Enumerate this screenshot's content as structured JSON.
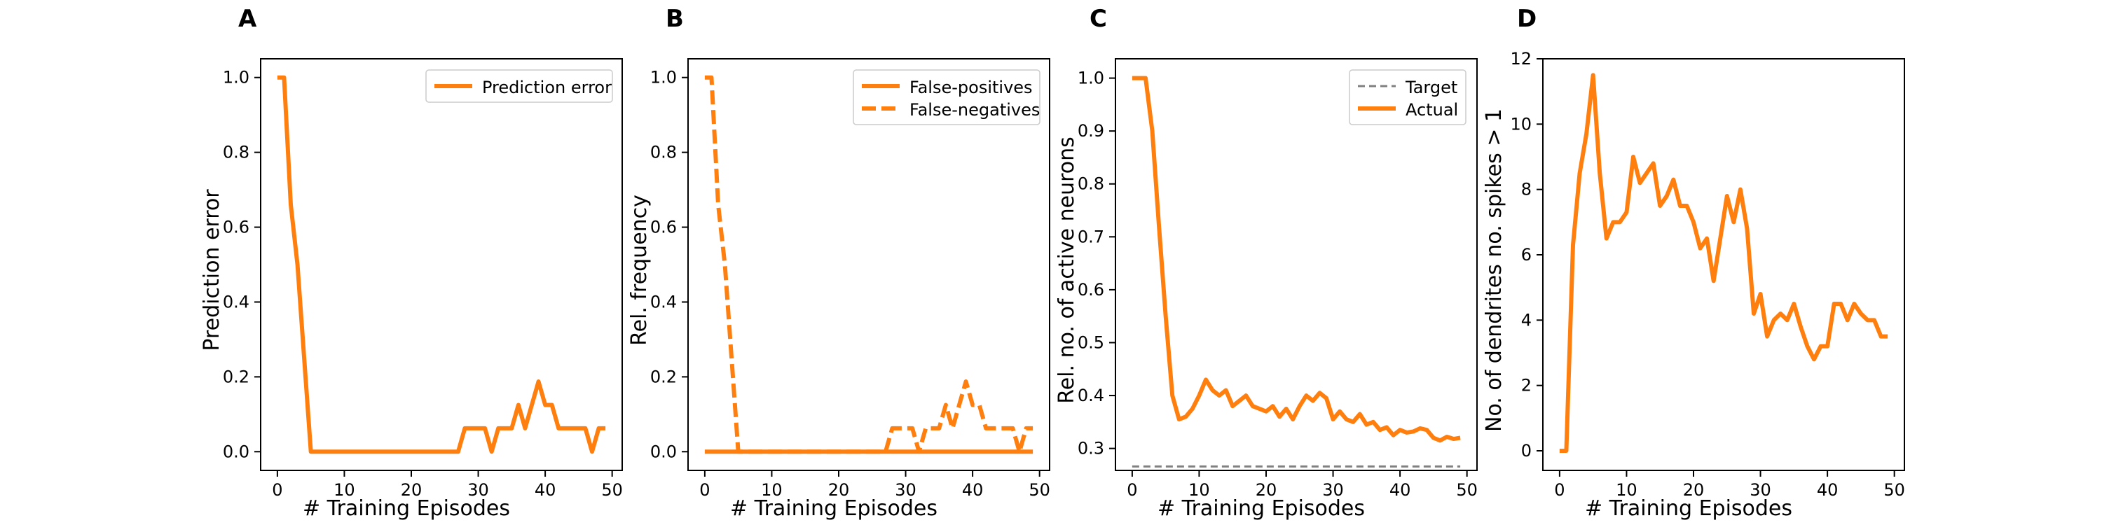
{
  "colors": {
    "series": "#ff7f0e",
    "target": "#808080",
    "axis": "#000000",
    "background": "#ffffff"
  },
  "chart_data": [
    {
      "panel_label": "A",
      "type": "line",
      "xlabel": "# Training Episodes",
      "ylabel": "Prediction error",
      "xlim": [
        -2.5,
        51.5
      ],
      "ylim": [
        -0.05,
        1.05
      ],
      "xticks": [
        0,
        10,
        20,
        30,
        40,
        50
      ],
      "yticks": [
        0.0,
        0.2,
        0.4,
        0.6,
        0.8,
        1.0
      ],
      "ytick_labels": [
        "0.0",
        "0.2",
        "0.4",
        "0.6",
        "0.8",
        "1.0"
      ],
      "legend_position": "upper-right",
      "series": [
        {
          "name": "Prediction error",
          "style": "solid",
          "x": [
            0,
            1,
            2,
            3,
            4,
            5,
            6,
            7,
            8,
            9,
            10,
            11,
            12,
            13,
            14,
            15,
            16,
            17,
            18,
            19,
            20,
            21,
            22,
            23,
            24,
            25,
            26,
            27,
            28,
            29,
            30,
            31,
            32,
            33,
            34,
            35,
            36,
            37,
            38,
            39,
            40,
            41,
            42,
            43,
            44,
            45,
            46,
            47,
            48,
            49
          ],
          "y": [
            1.0,
            1.0,
            0.66,
            0.5,
            0.25,
            0,
            0,
            0,
            0,
            0,
            0,
            0,
            0,
            0,
            0,
            0,
            0,
            0,
            0,
            0,
            0,
            0,
            0,
            0,
            0,
            0,
            0,
            0,
            0.0625,
            0.0625,
            0.0625,
            0.0625,
            0,
            0.0625,
            0.0625,
            0.0625,
            0.125,
            0.0625,
            0.125,
            0.1875,
            0.125,
            0.125,
            0.0625,
            0.0625,
            0.0625,
            0.0625,
            0.0625,
            0,
            0.0625,
            0.0625
          ]
        }
      ]
    },
    {
      "panel_label": "B",
      "type": "line",
      "xlabel": "# Training Episodes",
      "ylabel": "Rel. frequency",
      "xlim": [
        -2.5,
        51.5
      ],
      "ylim": [
        -0.05,
        1.05
      ],
      "xticks": [
        0,
        10,
        20,
        30,
        40,
        50
      ],
      "yticks": [
        0.0,
        0.2,
        0.4,
        0.6,
        0.8,
        1.0
      ],
      "ytick_labels": [
        "0.0",
        "0.2",
        "0.4",
        "0.6",
        "0.8",
        "1.0"
      ],
      "legend_position": "upper-right",
      "series": [
        {
          "name": "False-positives",
          "style": "solid",
          "x": [
            0,
            1,
            2,
            3,
            4,
            5,
            6,
            7,
            8,
            9,
            10,
            11,
            12,
            13,
            14,
            15,
            16,
            17,
            18,
            19,
            20,
            21,
            22,
            23,
            24,
            25,
            26,
            27,
            28,
            29,
            30,
            31,
            32,
            33,
            34,
            35,
            36,
            37,
            38,
            39,
            40,
            41,
            42,
            43,
            44,
            45,
            46,
            47,
            48,
            49
          ],
          "y": [
            0,
            0,
            0,
            0,
            0,
            0,
            0,
            0,
            0,
            0,
            0,
            0,
            0,
            0,
            0,
            0,
            0,
            0,
            0,
            0,
            0,
            0,
            0,
            0,
            0,
            0,
            0,
            0,
            0,
            0,
            0,
            0,
            0,
            0,
            0,
            0,
            0,
            0,
            0,
            0,
            0,
            0,
            0,
            0,
            0,
            0,
            0,
            0,
            0,
            0
          ]
        },
        {
          "name": "False-negatives",
          "style": "dashed",
          "x": [
            0,
            1,
            2,
            3,
            4,
            5,
            6,
            7,
            8,
            9,
            10,
            11,
            12,
            13,
            14,
            15,
            16,
            17,
            18,
            19,
            20,
            21,
            22,
            23,
            24,
            25,
            26,
            27,
            28,
            29,
            30,
            31,
            32,
            33,
            34,
            35,
            36,
            37,
            38,
            39,
            40,
            41,
            42,
            43,
            44,
            45,
            46,
            47,
            48,
            49
          ],
          "y": [
            1.0,
            1.0,
            0.66,
            0.5,
            0.25,
            0,
            0,
            0,
            0,
            0,
            0,
            0,
            0,
            0,
            0,
            0,
            0,
            0,
            0,
            0,
            0,
            0,
            0,
            0,
            0,
            0,
            0,
            0,
            0.0625,
            0.0625,
            0.0625,
            0.0625,
            0,
            0.0625,
            0.0625,
            0.0625,
            0.125,
            0.0625,
            0.125,
            0.1875,
            0.125,
            0.125,
            0.0625,
            0.0625,
            0.0625,
            0.0625,
            0.0625,
            0,
            0.0625,
            0.0625
          ]
        }
      ]
    },
    {
      "panel_label": "C",
      "type": "line",
      "xlabel": "# Training Episodes",
      "ylabel": "Rel. no. of active neurons",
      "xlim": [
        -2.5,
        51.5
      ],
      "ylim": [
        0.2585,
        1.0365
      ],
      "xticks": [
        0,
        10,
        20,
        30,
        40,
        50
      ],
      "yticks": [
        0.3,
        0.4,
        0.5,
        0.6,
        0.7,
        0.8,
        0.9,
        1.0
      ],
      "ytick_labels": [
        "0.3",
        "0.4",
        "0.5",
        "0.6",
        "0.7",
        "0.8",
        "0.9",
        "1.0"
      ],
      "legend_position": "upper-right",
      "series": [
        {
          "name": "Target",
          "style": "dashed",
          "x": [
            0,
            49
          ],
          "y": [
            0.266,
            0.266
          ]
        },
        {
          "name": "Actual",
          "style": "solid",
          "x": [
            0,
            1,
            2,
            3,
            4,
            5,
            6,
            7,
            8,
            9,
            10,
            11,
            12,
            13,
            14,
            15,
            16,
            17,
            18,
            19,
            20,
            21,
            22,
            23,
            24,
            25,
            26,
            27,
            28,
            29,
            30,
            31,
            32,
            33,
            34,
            35,
            36,
            37,
            38,
            39,
            40,
            41,
            42,
            43,
            44,
            45,
            46,
            47,
            48,
            49
          ],
          "y": [
            1.0,
            1.0,
            1.0,
            0.9,
            0.72,
            0.55,
            0.4,
            0.355,
            0.36,
            0.375,
            0.4,
            0.43,
            0.41,
            0.4,
            0.41,
            0.38,
            0.39,
            0.4,
            0.38,
            0.375,
            0.37,
            0.38,
            0.36,
            0.375,
            0.355,
            0.38,
            0.4,
            0.39,
            0.405,
            0.395,
            0.355,
            0.37,
            0.355,
            0.35,
            0.365,
            0.345,
            0.35,
            0.335,
            0.34,
            0.325,
            0.335,
            0.33,
            0.332,
            0.338,
            0.335,
            0.32,
            0.315,
            0.322,
            0.318,
            0.32
          ]
        }
      ]
    },
    {
      "panel_label": "D",
      "type": "line",
      "xlabel": "# Training Episodes",
      "ylabel": "No. of dendrites no. spikes > 1",
      "xlim": [
        -2.5,
        51.5
      ],
      "ylim": [
        -0.6,
        12.0
      ],
      "xticks": [
        0,
        10,
        20,
        30,
        40,
        50
      ],
      "yticks": [
        0,
        2,
        4,
        6,
        8,
        10,
        12
      ],
      "ytick_labels": [
        "0",
        "2",
        "4",
        "6",
        "8",
        "10",
        "12"
      ],
      "legend_position": "none",
      "series": [
        {
          "name": "",
          "style": "solid",
          "x": [
            0,
            1,
            2,
            3,
            4,
            5,
            6,
            7,
            8,
            9,
            10,
            11,
            12,
            13,
            14,
            15,
            16,
            17,
            18,
            19,
            20,
            21,
            22,
            23,
            24,
            25,
            26,
            27,
            28,
            29,
            30,
            31,
            32,
            33,
            34,
            35,
            36,
            37,
            38,
            39,
            40,
            41,
            42,
            43,
            44,
            45,
            46,
            47,
            48,
            49
          ],
          "y": [
            0,
            0,
            6.3,
            8.5,
            9.7,
            11.5,
            8.5,
            6.5,
            7.0,
            7.0,
            7.3,
            9.0,
            8.2,
            8.5,
            8.8,
            7.5,
            7.8,
            8.3,
            7.5,
            7.5,
            7.0,
            6.2,
            6.5,
            5.2,
            6.5,
            7.8,
            7.0,
            8.0,
            6.8,
            4.2,
            4.8,
            3.5,
            4.0,
            4.2,
            4.0,
            4.5,
            3.8,
            3.2,
            2.8,
            3.2,
            3.2,
            4.5,
            4.5,
            4.0,
            4.5,
            4.2,
            4.0,
            4.0,
            3.5,
            3.5
          ]
        }
      ]
    }
  ]
}
